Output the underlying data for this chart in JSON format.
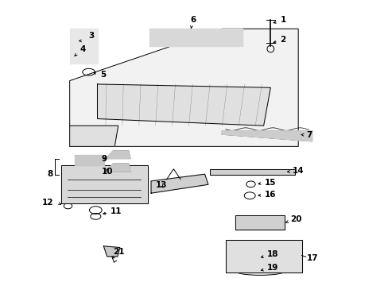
{
  "background_color": "#ffffff",
  "line_color": "#000000",
  "label_fontsize": 7.5,
  "fig_width": 4.89,
  "fig_height": 3.6,
  "dpi": 100
}
